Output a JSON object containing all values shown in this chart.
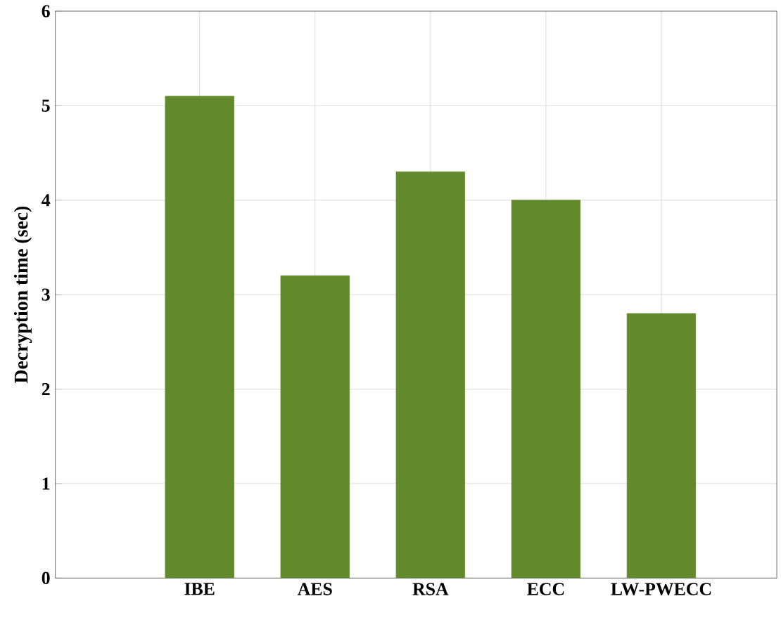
{
  "chart_data": {
    "type": "bar",
    "ylabel": "Decryption time (sec)",
    "categories": [
      "IBE",
      "AES",
      "RSA",
      "ECC",
      "LW-PWECC"
    ],
    "values": [
      5.1,
      3.2,
      4.3,
      4.0,
      2.8
    ],
    "color": "#628a2c",
    "ylim": [
      0,
      6
    ],
    "yticks": [
      0,
      1,
      2,
      3,
      4,
      5,
      6
    ],
    "grid": true
  }
}
